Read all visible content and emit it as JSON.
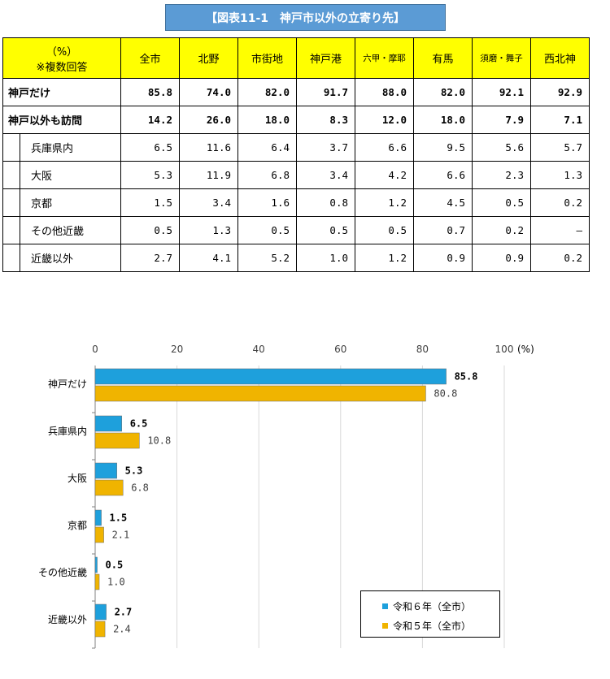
{
  "title": "【図表11-1　神戸市以外の立寄り先】",
  "table": {
    "corner_unit": "（%）",
    "corner_note": "※複数回答",
    "columns": [
      "全市",
      "北野",
      "市街地",
      "神戸港",
      "六甲・摩耶",
      "有馬",
      "須磨・舞子",
      "西北神"
    ],
    "main_rows": [
      {
        "label": "神戸だけ",
        "values": [
          "85.8",
          "74.0",
          "82.0",
          "91.7",
          "88.0",
          "82.0",
          "92.1",
          "92.9"
        ]
      },
      {
        "label": "神戸以外も訪問",
        "values": [
          "14.2",
          "26.0",
          "18.0",
          "8.3",
          "12.0",
          "18.0",
          "7.9",
          "7.1"
        ]
      }
    ],
    "sub_rows": [
      {
        "label": "兵庫県内",
        "values": [
          "6.5",
          "11.6",
          "6.4",
          "3.7",
          "6.6",
          "9.5",
          "5.6",
          "5.7"
        ]
      },
      {
        "label": "大阪",
        "values": [
          "5.3",
          "11.9",
          "6.8",
          "3.4",
          "4.2",
          "6.6",
          "2.3",
          "1.3"
        ]
      },
      {
        "label": "京都",
        "values": [
          "1.5",
          "3.4",
          "1.6",
          "0.8",
          "1.2",
          "4.5",
          "0.5",
          "0.2"
        ]
      },
      {
        "label": "その他近畿",
        "values": [
          "0.5",
          "1.3",
          "0.5",
          "0.5",
          "0.5",
          "0.7",
          "0.2",
          "—"
        ]
      },
      {
        "label": "近畿以外",
        "values": [
          "2.7",
          "4.1",
          "5.2",
          "1.0",
          "1.2",
          "0.9",
          "0.9",
          "0.2"
        ]
      }
    ]
  },
  "chart_data": {
    "type": "bar",
    "orientation": "horizontal",
    "categories": [
      "神戸だけ",
      "兵庫県内",
      "大阪",
      "京都",
      "その他近畿",
      "近畿以外"
    ],
    "series": [
      {
        "name": "令和６年（全市）",
        "values": [
          85.8,
          6.5,
          5.3,
          1.5,
          0.5,
          2.7
        ],
        "labels": [
          "85.8",
          "6.5",
          "5.3",
          "1.5",
          "0.5",
          "2.7"
        ],
        "color": "#1ea0dc"
      },
      {
        "name": "令和５年（全市）",
        "values": [
          80.8,
          10.8,
          6.8,
          2.1,
          1.0,
          2.4
        ],
        "labels": [
          "80.8",
          "10.8",
          "6.8",
          "2.1",
          "1.0",
          "2.4"
        ],
        "color": "#f0b400"
      }
    ],
    "xlim": [
      0,
      100
    ],
    "xticks": [
      "0",
      "20",
      "40",
      "60",
      "80",
      "100"
    ],
    "xunit": "(%)",
    "grid": true,
    "legend": "bottom-right"
  }
}
